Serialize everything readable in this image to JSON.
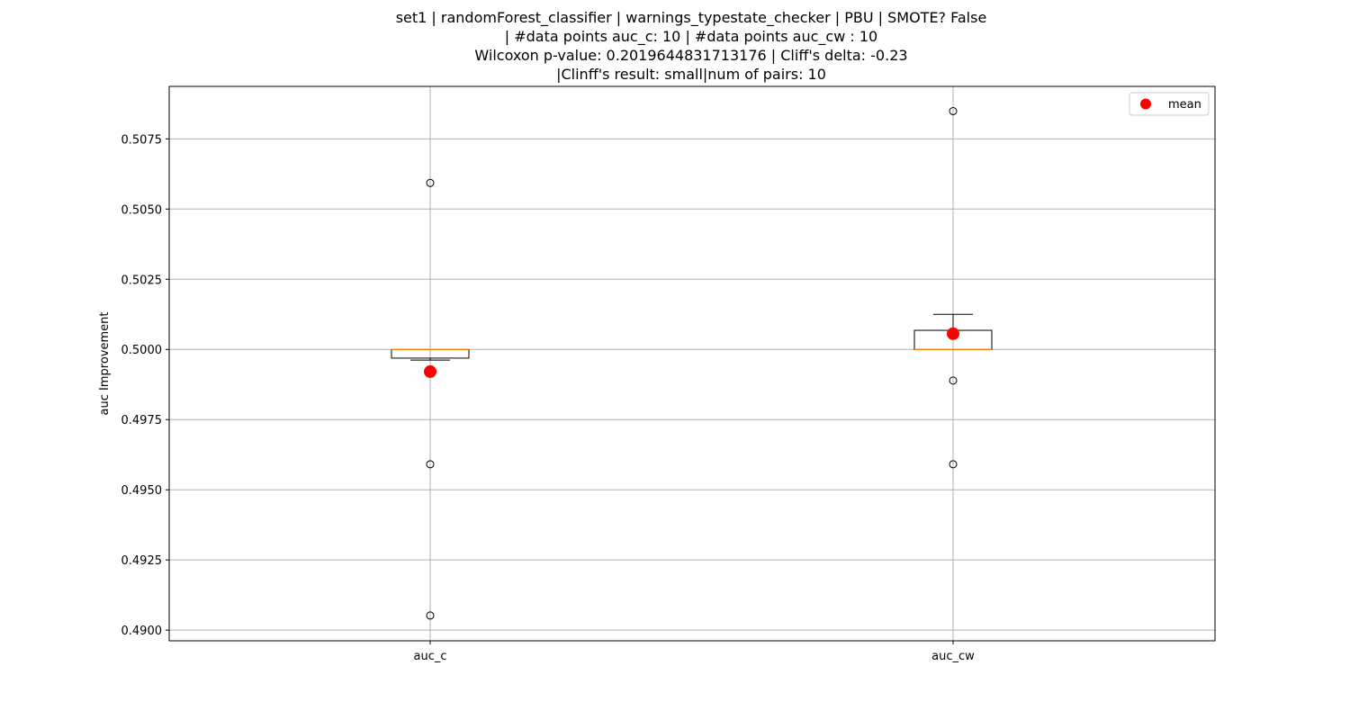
{
  "chart_data": {
    "type": "box",
    "title_lines": [
      "set1 | randomForest_classifier | warnings_typestate_checker | PBU | SMOTE? False",
      "| #data points auc_c: 10 | #data points auc_cw : 10",
      "Wilcoxon p-value: 0.2019644831713176 | Cliff's delta: -0.23",
      "|Clinff's result: small|num of pairs: 10"
    ],
    "xlabel": "",
    "ylabel": "auc Improvement",
    "categories": [
      "auc_c",
      "auc_cw"
    ],
    "ylim": [
      0.48962,
      0.50937
    ],
    "yticks": [
      0.49,
      0.4925,
      0.495,
      0.4975,
      0.5,
      0.5025,
      0.505,
      0.5075
    ],
    "ytick_labels": [
      "0.4900",
      "0.4925",
      "0.4950",
      "0.4975",
      "0.5000",
      "0.5025",
      "0.5050",
      "0.5075"
    ],
    "grid": true,
    "legend_position": "top-right",
    "legend": [
      {
        "label": "mean",
        "marker": "circle",
        "color": "#ff0000"
      }
    ],
    "boxes": [
      {
        "category": "auc_c",
        "whisker_low": 0.49962,
        "q1": 0.49969,
        "median": 0.5,
        "q3": 0.5,
        "whisker_high": 0.5,
        "mean": 0.49921,
        "outliers": [
          0.50593,
          0.49591,
          0.49052
        ]
      },
      {
        "category": "auc_cw",
        "whisker_low": 0.5,
        "q1": 0.5,
        "median": 0.5,
        "q3": 0.50068,
        "whisker_high": 0.50125,
        "mean": 0.50056,
        "outliers": [
          0.50849,
          0.49889,
          0.49591
        ]
      }
    ],
    "colors": {
      "box": "#000000",
      "median": "#ff7f0e",
      "mean": "#ff0000",
      "grid": "#b0b0b0"
    }
  }
}
